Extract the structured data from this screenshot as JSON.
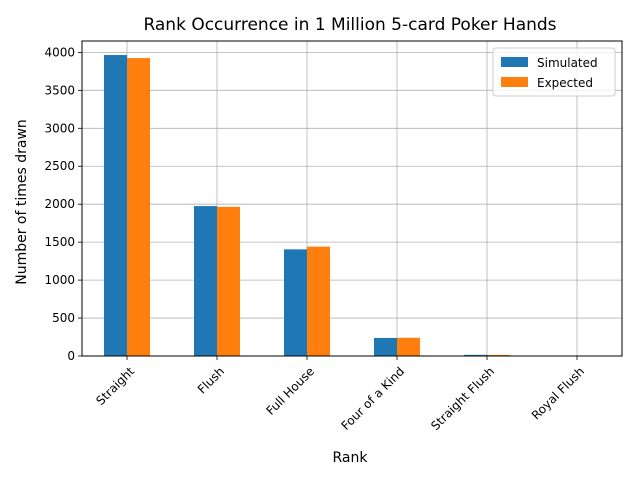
{
  "chart_data": {
    "type": "bar",
    "title": "Rank Occurrence in 1 Million 5-card Poker Hands",
    "xlabel": "Rank",
    "ylabel": "Number of times drawn",
    "categories": [
      "Straight",
      "Flush",
      "Full House",
      "Four of a Kind",
      "Straight Flush",
      "Royal Flush"
    ],
    "series": [
      {
        "name": "Simulated",
        "color": "#1f77b4",
        "values": [
          3965,
          1975,
          1405,
          238,
          15,
          2
        ]
      },
      {
        "name": "Expected",
        "color": "#ff7f0e",
        "values": [
          3925,
          1965,
          1441,
          240,
          14,
          2
        ]
      }
    ],
    "ylim": [
      0,
      4150
    ],
    "yticks": [
      0,
      500,
      1000,
      1500,
      2000,
      2500,
      3000,
      3500,
      4000
    ],
    "grid": true,
    "legend": "top-right"
  }
}
